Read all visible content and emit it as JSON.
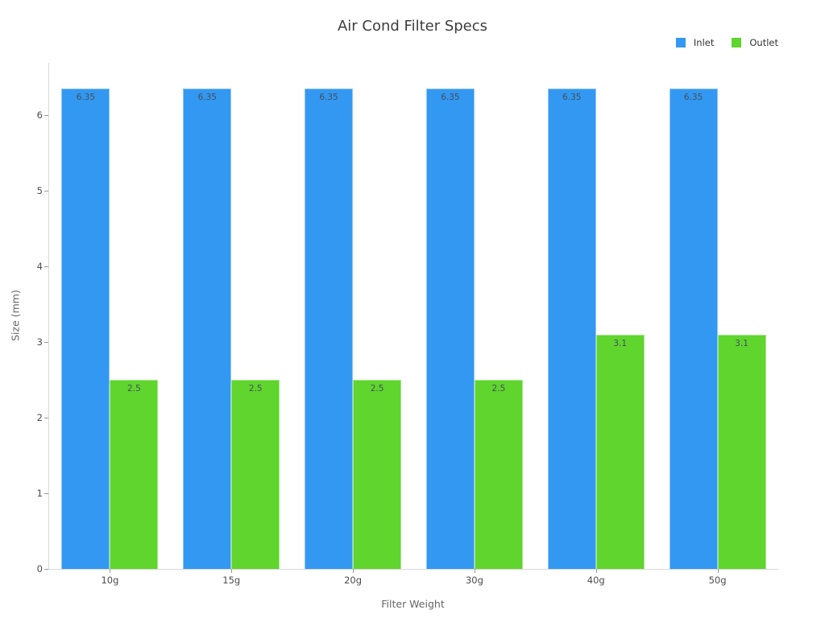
{
  "title": "Air Cond Filter Specs",
  "legend": {
    "items": [
      {
        "label": "Inlet",
        "color": "#3398F1"
      },
      {
        "label": "Outlet",
        "color": "#5FD52D"
      }
    ]
  },
  "chart_data": {
    "type": "bar",
    "title": "Air Cond Filter Specs",
    "xlabel": "Filter Weight",
    "ylabel": "Size (mm)",
    "categories": [
      "10g",
      "15g",
      "20g",
      "30g",
      "40g",
      "50g"
    ],
    "series": [
      {
        "name": "Inlet",
        "color": "#3398F1",
        "values": [
          6.35,
          6.35,
          6.35,
          6.35,
          6.35,
          6.35
        ]
      },
      {
        "name": "Outlet",
        "color": "#5FD52D",
        "values": [
          2.5,
          2.5,
          2.5,
          2.5,
          3.1,
          3.1
        ]
      }
    ],
    "ylim": [
      0,
      6.69
    ],
    "yticks": [
      0,
      1,
      2,
      3,
      4,
      5,
      6
    ],
    "grid": false,
    "legend_position": "top-right",
    "bar_labels": true,
    "bar_label_position": "inside-top"
  }
}
